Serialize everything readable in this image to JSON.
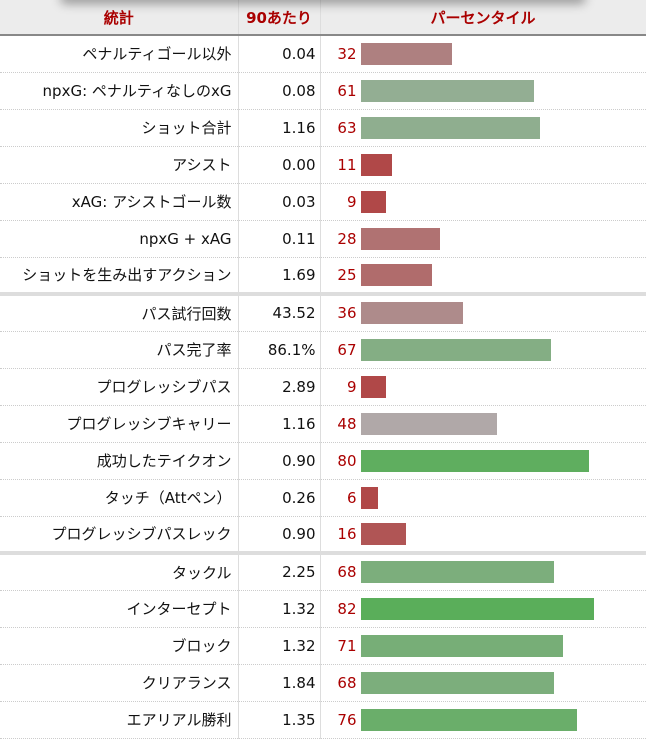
{
  "headers": {
    "stat": "統計",
    "per90": "90あたり",
    "percentile": "パーセンタイル"
  },
  "rows": [
    {
      "stat": "ペナルティゴール以外",
      "per90": "0.04",
      "pct": 32,
      "color": "#ae8080"
    },
    {
      "stat": "npxG: ペナルティなしのxG",
      "per90": "0.08",
      "pct": 61,
      "color": "#93ae93"
    },
    {
      "stat": "ショット合計",
      "per90": "1.16",
      "pct": 63,
      "color": "#8fae8f"
    },
    {
      "stat": "アシスト",
      "per90": "0.00",
      "pct": 11,
      "color": "#b04848"
    },
    {
      "stat": "xAG: アシストゴール数",
      "per90": "0.03",
      "pct": 9,
      "color": "#b04848"
    },
    {
      "stat": "npxG + xAG",
      "per90": "0.11",
      "pct": 28,
      "color": "#b07272"
    },
    {
      "stat": "ショットを生み出すアクション",
      "per90": "1.69",
      "pct": 25,
      "color": "#b06c6c",
      "group_end": true
    },
    {
      "stat": "パス試行回数",
      "per90": "43.52",
      "pct": 36,
      "color": "#ae8b8b"
    },
    {
      "stat": "パス完了率",
      "per90": "86.1%",
      "pct": 67,
      "color": "#84ae84"
    },
    {
      "stat": "プログレッシブパス",
      "per90": "2.89",
      "pct": 9,
      "color": "#b04848"
    },
    {
      "stat": "プログレッシブキャリー",
      "per90": "1.16",
      "pct": 48,
      "color": "#b0a8a8"
    },
    {
      "stat": "成功したテイクオン",
      "per90": "0.90",
      "pct": 80,
      "color": "#5fae5f"
    },
    {
      "stat": "タッチ（Attペン）",
      "per90": "0.26",
      "pct": 6,
      "color": "#b04848"
    },
    {
      "stat": "プログレッシブパスレック",
      "per90": "0.90",
      "pct": 16,
      "color": "#b05555",
      "group_end": true
    },
    {
      "stat": "タックル",
      "per90": "2.25",
      "pct": 68,
      "color": "#7cae7c"
    },
    {
      "stat": "インターセプト",
      "per90": "1.32",
      "pct": 82,
      "color": "#5aae5a"
    },
    {
      "stat": "ブロック",
      "per90": "1.32",
      "pct": 71,
      "color": "#77ae77"
    },
    {
      "stat": "クリアランス",
      "per90": "1.84",
      "pct": 68,
      "color": "#7cae7c"
    },
    {
      "stat": "エアリアル勝利",
      "per90": "1.35",
      "pct": 76,
      "color": "#6aae6a"
    }
  ]
}
